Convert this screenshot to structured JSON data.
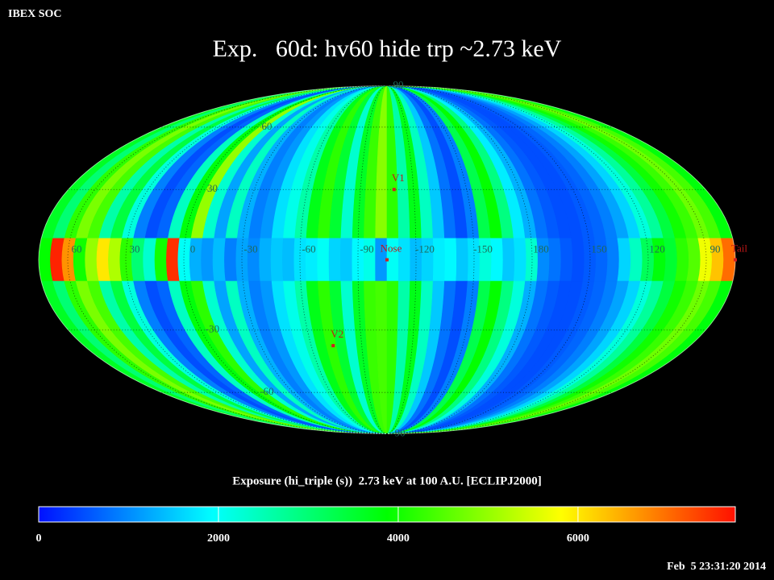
{
  "header": "IBEX SOC",
  "chart_data": {
    "type": "skymap",
    "projection": "mollweide",
    "title": "Exp.   60d: hv60 hide trp ~2.73 keV",
    "center_lon": -105,
    "lat_bins": [
      90,
      9,
      -9,
      -90
    ],
    "values": [
      [
        3600,
        3000,
        4200,
        4800,
        4400,
        2600,
        3400,
        2200,
        900,
        500,
        700,
        2400,
        3800,
        5000,
        2300,
        1200,
        2400,
        1300,
        900,
        1100,
        1700,
        2100,
        2600,
        3700,
        4200,
        3500,
        2300,
        3600,
        4300,
        4900,
        4200,
        2600,
        3700,
        2400,
        1500,
        800,
        500,
        900,
        3300,
        3900,
        2900,
        1800,
        1300,
        800,
        600,
        500,
        500,
        600,
        700,
        900,
        1200,
        1600,
        2200,
        2700,
        3400,
        4000,
        4300,
        4700,
        4400,
        3800
      ],
      [
        3900,
        7600,
        6700,
        4000,
        5000,
        6000,
        5200,
        4200,
        3000,
        2300,
        4000,
        7500,
        2000,
        1300,
        1100,
        1400,
        900,
        1200,
        1000,
        1300,
        1500,
        1400,
        1700,
        1800,
        2000,
        1600,
        1500,
        1900,
        2100,
        1100,
        2000,
        1700,
        1400,
        1600,
        1800,
        1900,
        1500,
        1700,
        2200,
        1900,
        1500,
        1700,
        2300,
        1000,
        800,
        600,
        500,
        600,
        700,
        900,
        1600,
        2400,
        3200,
        3800,
        3500,
        4200,
        4500,
        5700,
        6300,
        7000
      ],
      [
        3600,
        3000,
        4200,
        4800,
        4400,
        2600,
        3400,
        2200,
        900,
        500,
        700,
        2400,
        3800,
        4200,
        2300,
        1200,
        2400,
        1300,
        900,
        1100,
        1700,
        2100,
        2600,
        3700,
        4200,
        3500,
        2300,
        3600,
        4300,
        4400,
        4200,
        2600,
        3700,
        2400,
        1500,
        800,
        500,
        900,
        3300,
        3900,
        2900,
        2200,
        1300,
        800,
        600,
        500,
        500,
        600,
        700,
        900,
        1200,
        1600,
        2200,
        2700,
        3400,
        4000,
        4300,
        4700,
        4400,
        3800
      ]
    ],
    "colormap": [
      "#0010ff",
      "#00ffff",
      "#00ff00",
      "#ffff00",
      "#ff1000"
    ],
    "clim": [
      0,
      7750
    ],
    "cticks": [
      0,
      2000,
      4000,
      6000
    ],
    "colorbar_label": "Exposure (hi_triple (s))  2.73 keV at 100 A.U. [ECLIPJ2000]",
    "lon_ticks": [
      60,
      30,
      0,
      -30,
      -60,
      -90,
      -120,
      -150,
      180,
      150,
      120,
      90
    ],
    "lat_ticks": [
      90,
      60,
      30,
      -30,
      -60,
      -90
    ],
    "grid": true,
    "points": [
      {
        "name": "V1",
        "lon": -109,
        "lat": 30
      },
      {
        "name": "Nose",
        "lon": -105,
        "lat": 0
      },
      {
        "name": "V2",
        "lon": -73,
        "lat": -37
      },
      {
        "name": "Tail",
        "lon": 75,
        "lat": 0
      }
    ]
  },
  "timestamp": "Feb  5 23:31:20 2014"
}
